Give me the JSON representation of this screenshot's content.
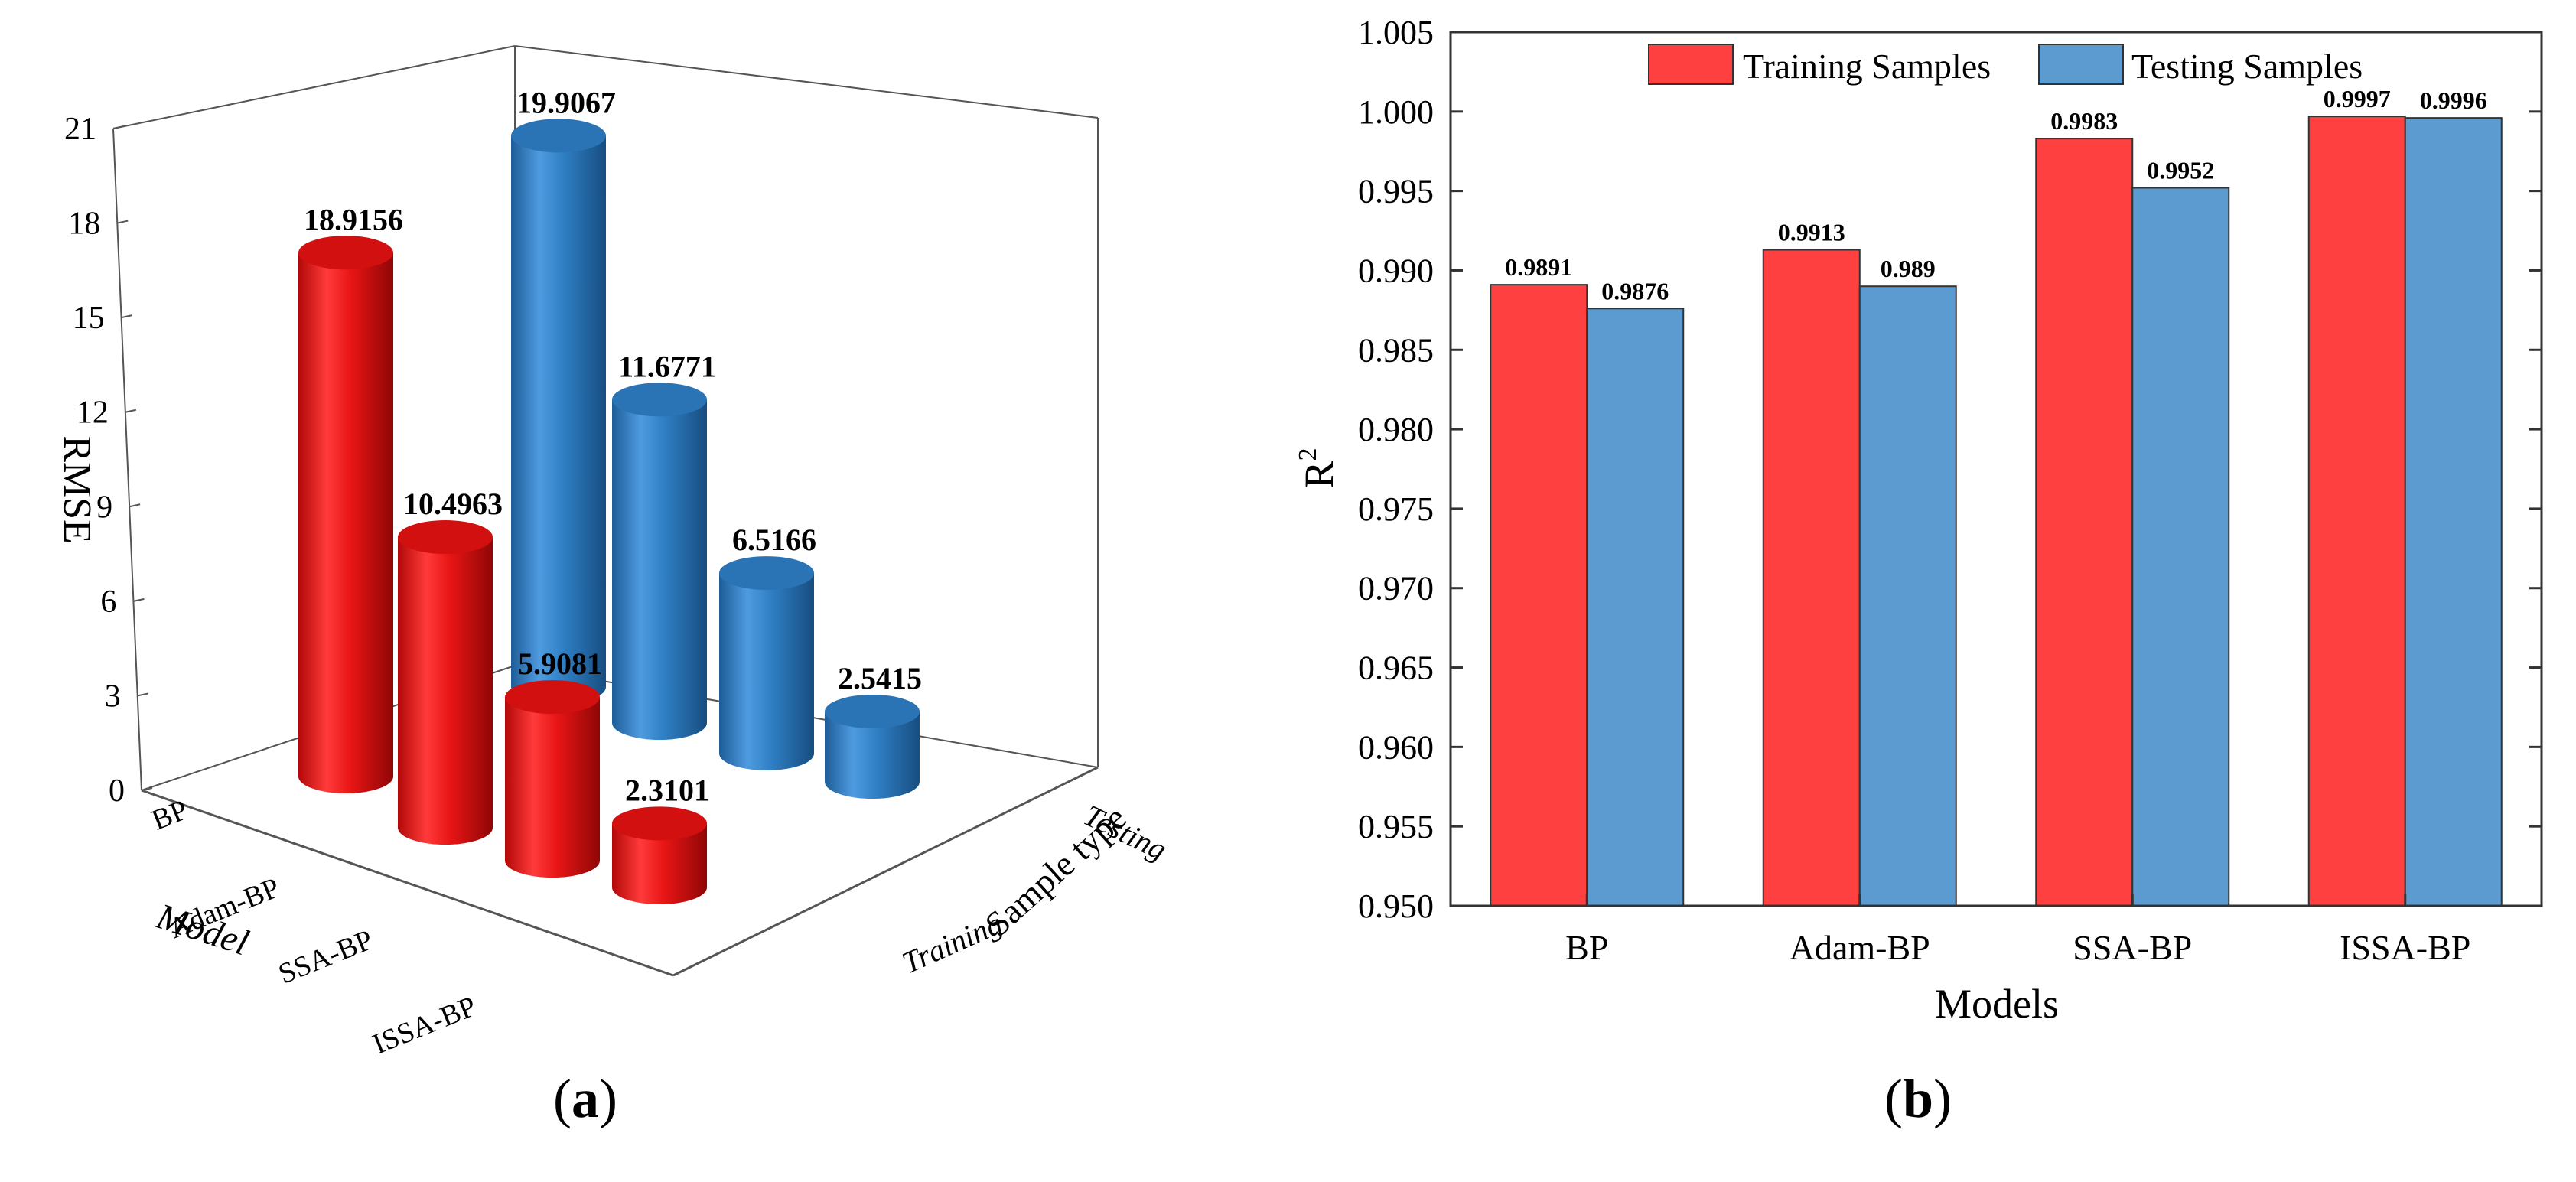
{
  "chart_data": [
    {
      "type": "bar",
      "style": "3d-cylinder",
      "ylabel": "RMSE",
      "xlabel": "Model",
      "zlabel": "Sample type",
      "ylim": [
        0,
        21
      ],
      "yticks": [
        "0",
        "3",
        "6",
        "9",
        "12",
        "15",
        "18",
        "21"
      ],
      "categories": [
        "BP",
        "Adam-BP",
        "SSA-BP",
        "ISSA-BP"
      ],
      "sample_types": [
        "Training",
        "Testing"
      ],
      "series": [
        {
          "name": "Training",
          "color": "#ee1c1c",
          "values": [
            18.9156,
            10.4963,
            5.9081,
            2.3101
          ],
          "labels": [
            "18.9156",
            "10.4963",
            "5.9081",
            "2.3101"
          ]
        },
        {
          "name": "Testing",
          "color": "#2f7fc4",
          "values": [
            19.9067,
            11.6771,
            6.5166,
            2.5415
          ],
          "labels": [
            "19.9067",
            "11.6771",
            "6.5166",
            "2.5415"
          ]
        }
      ],
      "caption": {
        "open": "(",
        "letter": "a",
        "close": ")"
      }
    },
    {
      "type": "bar",
      "xlabel": "Models",
      "ylabel": "R",
      "ylabel_sup": "2",
      "ylim": [
        0.95,
        1.005
      ],
      "yticks": [
        "0.950",
        "0.955",
        "0.960",
        "0.965",
        "0.970",
        "0.975",
        "0.980",
        "0.985",
        "0.990",
        "0.995",
        "1.000",
        "1.005"
      ],
      "categories": [
        "BP",
        "Adam-BP",
        "SSA-BP",
        "ISSA-BP"
      ],
      "legend_position": "top-center",
      "series": [
        {
          "name": "Training Samples",
          "color": "#ff4040",
          "values": [
            0.9891,
            0.9913,
            0.9983,
            0.9997
          ],
          "labels": [
            "0.9891",
            "0.9913",
            "0.9983",
            "0.9997"
          ]
        },
        {
          "name": "Testing Samples",
          "color": "#5b9bd0",
          "values": [
            0.9876,
            0.989,
            0.9952,
            0.9996
          ],
          "labels": [
            "0.9876",
            "0.989",
            "0.9952",
            "0.9996"
          ]
        }
      ],
      "caption": {
        "open": "(",
        "letter": "b",
        "close": ")"
      }
    }
  ]
}
